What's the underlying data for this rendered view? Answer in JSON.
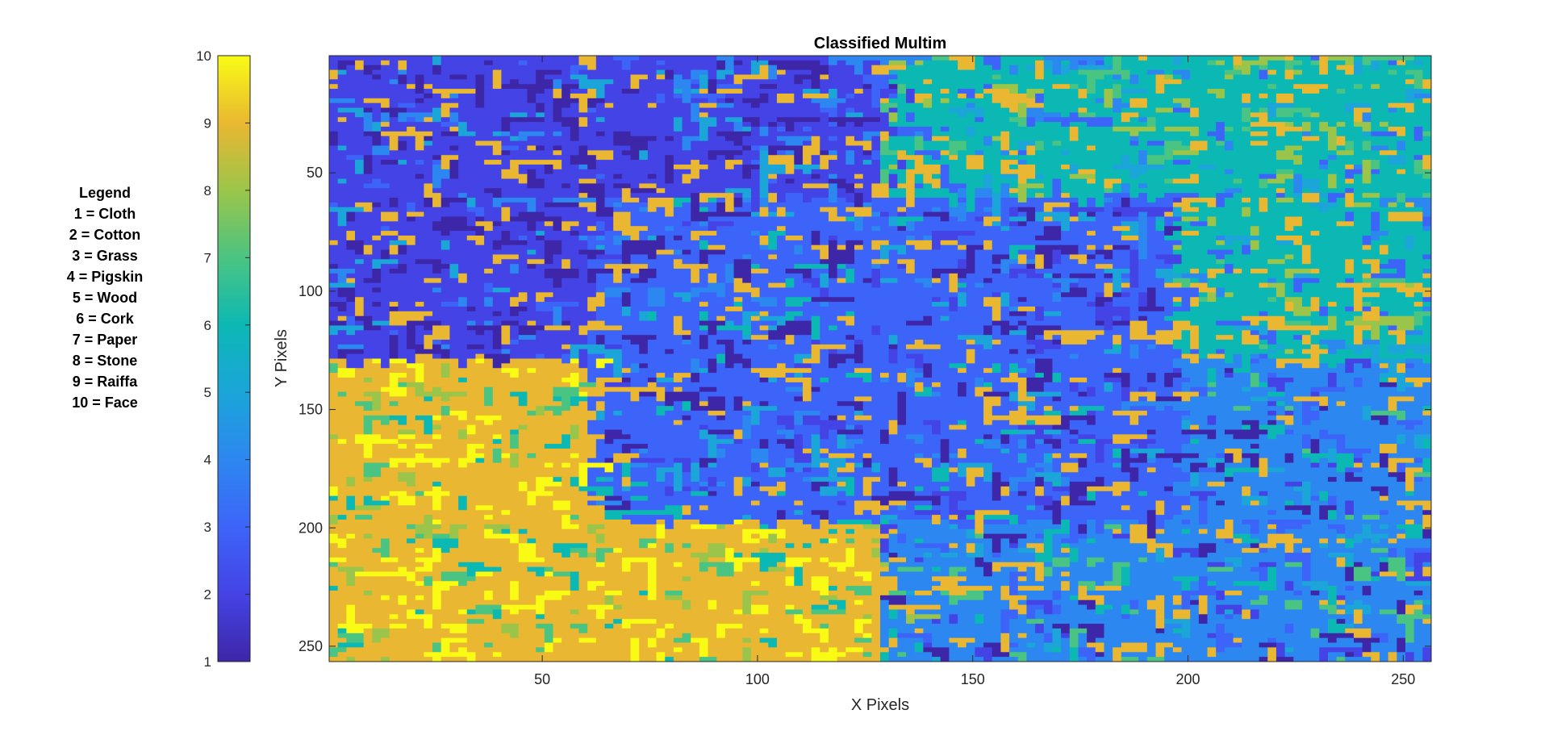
{
  "legend": {
    "title": "Legend",
    "entries": [
      "1 = Cloth",
      "2 = Cotton",
      "3 = Grass",
      "4 = Pigskin",
      "5 = Wood",
      "6 = Cork",
      "7 = Paper",
      "8 = Stone",
      "9 = Raiffa",
      "10 = Face"
    ]
  },
  "chart_data": {
    "type": "heatmap",
    "title": "Classified Multim",
    "xlabel": "X Pixels",
    "ylabel": "Y Pixels",
    "xlim": [
      0.5,
      256.5
    ],
    "ylim": [
      0.5,
      256.5
    ],
    "y_reversed": true,
    "grid": false,
    "x_ticks": [
      50,
      100,
      150,
      200,
      250
    ],
    "y_ticks": [
      50,
      100,
      150,
      200,
      250
    ],
    "colorbar": {
      "limits": [
        1,
        10
      ],
      "ticks": [
        1,
        2,
        3,
        4,
        5,
        6,
        7,
        8,
        9,
        10
      ],
      "colormap": "parula",
      "placement": "left"
    },
    "dominant_classes_by_region": [
      {
        "x_range": [
          1,
          128
        ],
        "y_range": [
          1,
          128
        ],
        "class": 2
      },
      {
        "x_range": [
          129,
          256
        ],
        "y_range": [
          1,
          128
        ],
        "class": 6
      },
      {
        "x_range": [
          1,
          128
        ],
        "y_range": [
          129,
          256
        ],
        "class": 9
      },
      {
        "x_range": [
          129,
          256
        ],
        "y_range": [
          129,
          256
        ],
        "class": 4
      },
      {
        "x_range": [
          61,
          196
        ],
        "y_range": [
          61,
          196
        ],
        "class": 3
      }
    ]
  }
}
